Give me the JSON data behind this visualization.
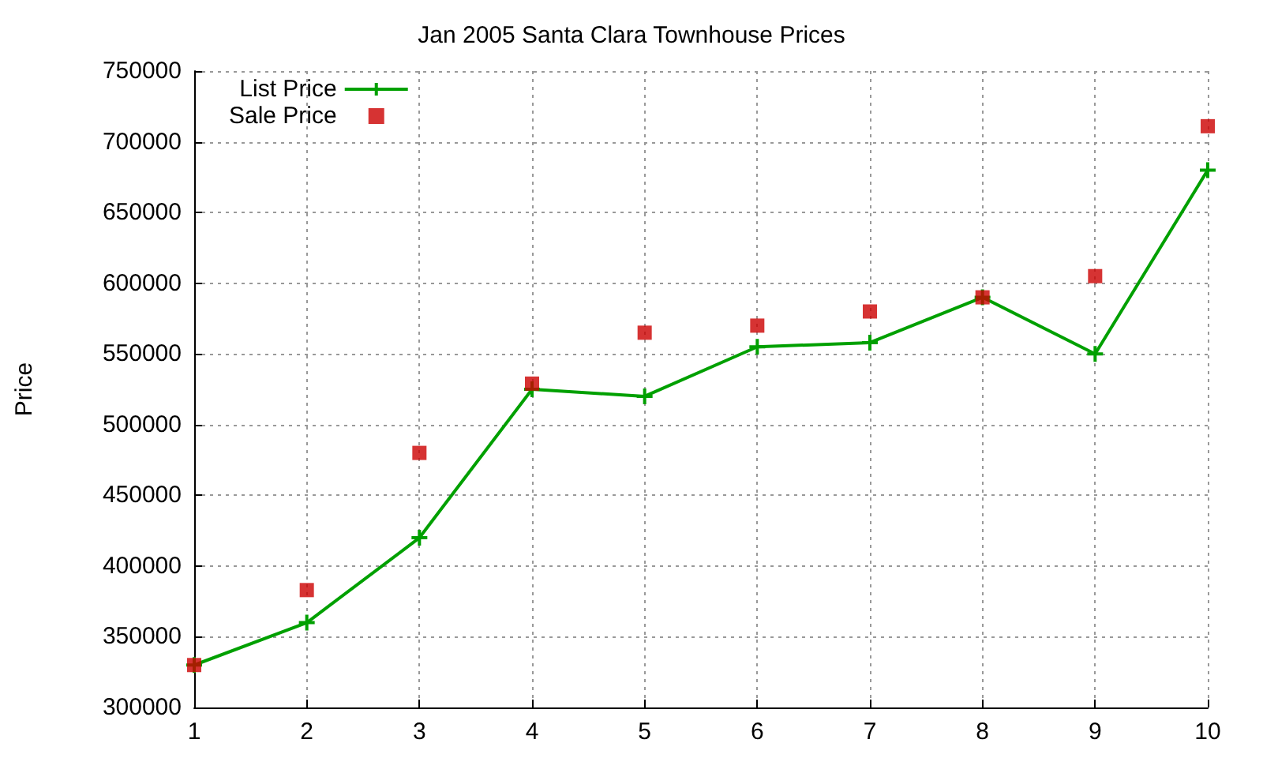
{
  "chart_data": {
    "type": "line",
    "title": "Jan 2005 Santa Clara Townhouse Prices",
    "ylabel": "Price",
    "x": [
      1,
      2,
      3,
      4,
      5,
      6,
      7,
      8,
      9,
      10
    ],
    "series": [
      {
        "name": "List Price",
        "color": "#00a000",
        "marker": "cross",
        "values": [
          330000,
          360000,
          420000,
          525000,
          520000,
          555000,
          558000,
          590000,
          550000,
          680000
        ]
      },
      {
        "name": "Sale Price",
        "type": "scatter",
        "color": "#cc0000",
        "marker": "square",
        "values": [
          330000,
          383000,
          480000,
          529000,
          565000,
          570000,
          580000,
          590000,
          605000,
          711000
        ]
      }
    ],
    "xlim": [
      1,
      10
    ],
    "xticks": [
      1,
      2,
      3,
      4,
      5,
      6,
      7,
      8,
      9,
      10
    ],
    "ylim": [
      300000,
      750000
    ],
    "yticks": [
      300000,
      350000,
      400000,
      450000,
      500000,
      550000,
      600000,
      650000,
      700000,
      750000
    ],
    "grid": true,
    "legend": "top left"
  }
}
